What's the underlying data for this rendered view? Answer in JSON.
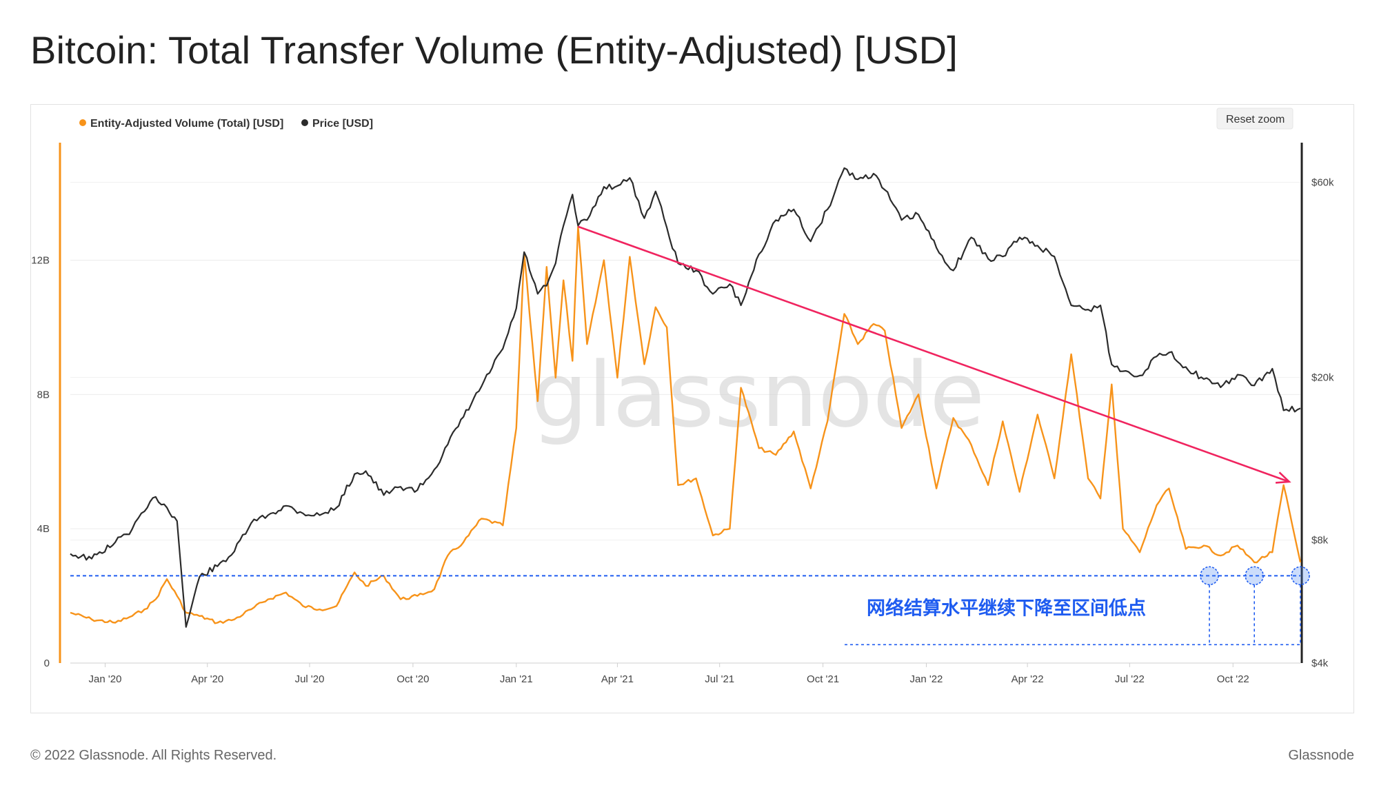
{
  "title": "Bitcoin: Total Transfer Volume (Entity-Adjusted) [USD]",
  "footer": {
    "copyright": "© 2022 Glassnode. All Rights Reserved.",
    "brand": "Glassnode"
  },
  "reset_zoom_label": "Reset zoom",
  "watermark": "glassnode",
  "colors": {
    "volume": "#f7931a",
    "price": "#2b2b2b",
    "trend": "#f0245f",
    "support": "#1f5cf0"
  },
  "chart_data": {
    "type": "line",
    "legend_position": "top-left",
    "grid": true,
    "x_ticks": [
      "Jan '20",
      "Apr '20",
      "Jul '20",
      "Oct '20",
      "Jan '21",
      "Apr '21",
      "Jul '21",
      "Oct '21",
      "Jan '22",
      "Apr '22",
      "Jul '22",
      "Oct '22"
    ],
    "x_range": [
      "2019-12-01",
      "2022-11-30"
    ],
    "y_left": {
      "ticks": [
        "0",
        "4B",
        "8B",
        "12B"
      ],
      "tick_values": [
        0,
        4,
        8,
        12
      ],
      "range": [
        0,
        15.5
      ],
      "unit": "B USD"
    },
    "y_right": {
      "ticks": [
        "$4k",
        "$8k",
        "$20k",
        "$60k"
      ],
      "tick_values": [
        4000,
        8000,
        20000,
        60000
      ],
      "range": [
        4000,
        75000
      ],
      "scale": "log"
    },
    "series": [
      {
        "name": "Entity-Adjusted Volume (Total) [USD]",
        "axis": "left",
        "points": [
          [
            "2019-12-01",
            1.5
          ],
          [
            "2019-12-20",
            1.3
          ],
          [
            "2020-01-10",
            1.2
          ],
          [
            "2020-01-25",
            1.4
          ],
          [
            "2020-02-05",
            1.6
          ],
          [
            "2020-02-15",
            1.9
          ],
          [
            "2020-02-25",
            2.5
          ],
          [
            "2020-03-05",
            2.0
          ],
          [
            "2020-03-13",
            1.5
          ],
          [
            "2020-03-25",
            1.4
          ],
          [
            "2020-04-10",
            1.2
          ],
          [
            "2020-04-25",
            1.3
          ],
          [
            "2020-05-10",
            1.6
          ],
          [
            "2020-05-25",
            1.9
          ],
          [
            "2020-06-10",
            2.1
          ],
          [
            "2020-06-25",
            1.7
          ],
          [
            "2020-07-10",
            1.6
          ],
          [
            "2020-07-25",
            1.7
          ],
          [
            "2020-08-10",
            2.7
          ],
          [
            "2020-08-20",
            2.3
          ],
          [
            "2020-09-05",
            2.6
          ],
          [
            "2020-09-20",
            1.9
          ],
          [
            "2020-10-05",
            2.0
          ],
          [
            "2020-10-20",
            2.2
          ],
          [
            "2020-11-01",
            3.2
          ],
          [
            "2020-11-15",
            3.6
          ],
          [
            "2020-12-01",
            4.3
          ],
          [
            "2020-12-20",
            4.1
          ],
          [
            "2021-01-01",
            7.0
          ],
          [
            "2021-01-08",
            12.2
          ],
          [
            "2021-01-20",
            7.8
          ],
          [
            "2021-01-28",
            11.8
          ],
          [
            "2021-02-05",
            8.5
          ],
          [
            "2021-02-12",
            11.4
          ],
          [
            "2021-02-20",
            9.0
          ],
          [
            "2021-02-25",
            13.0
          ],
          [
            "2021-03-05",
            9.5
          ],
          [
            "2021-03-20",
            12.0
          ],
          [
            "2021-04-01",
            8.5
          ],
          [
            "2021-04-12",
            12.1
          ],
          [
            "2021-04-25",
            8.9
          ],
          [
            "2021-05-05",
            10.6
          ],
          [
            "2021-05-15",
            10.0
          ],
          [
            "2021-05-25",
            5.3
          ],
          [
            "2021-06-10",
            5.5
          ],
          [
            "2021-06-25",
            3.8
          ],
          [
            "2021-07-10",
            4.0
          ],
          [
            "2021-07-20",
            8.2
          ],
          [
            "2021-08-05",
            6.4
          ],
          [
            "2021-08-20",
            6.2
          ],
          [
            "2021-09-05",
            6.9
          ],
          [
            "2021-09-20",
            5.2
          ],
          [
            "2021-10-05",
            7.2
          ],
          [
            "2021-10-20",
            10.4
          ],
          [
            "2021-11-01",
            9.5
          ],
          [
            "2021-11-15",
            10.1
          ],
          [
            "2021-11-25",
            9.9
          ],
          [
            "2021-12-10",
            7.0
          ],
          [
            "2021-12-25",
            8.0
          ],
          [
            "2022-01-10",
            5.2
          ],
          [
            "2022-01-25",
            7.3
          ],
          [
            "2022-02-10",
            6.5
          ],
          [
            "2022-02-25",
            5.3
          ],
          [
            "2022-03-10",
            7.2
          ],
          [
            "2022-03-25",
            5.1
          ],
          [
            "2022-04-10",
            7.4
          ],
          [
            "2022-04-25",
            5.5
          ],
          [
            "2022-05-10",
            9.2
          ],
          [
            "2022-05-25",
            5.5
          ],
          [
            "2022-06-05",
            4.9
          ],
          [
            "2022-06-15",
            8.3
          ],
          [
            "2022-06-25",
            4.0
          ],
          [
            "2022-07-10",
            3.3
          ],
          [
            "2022-07-25",
            4.7
          ],
          [
            "2022-08-05",
            5.2
          ],
          [
            "2022-08-20",
            3.4
          ],
          [
            "2022-09-05",
            3.5
          ],
          [
            "2022-09-20",
            3.2
          ],
          [
            "2022-10-05",
            3.5
          ],
          [
            "2022-10-20",
            3.0
          ],
          [
            "2022-11-05",
            3.3
          ],
          [
            "2022-11-15",
            5.3
          ],
          [
            "2022-11-30",
            3.0
          ]
        ]
      },
      {
        "name": "Price [USD]",
        "axis": "right",
        "points": [
          [
            "2019-12-01",
            7400
          ],
          [
            "2019-12-20",
            7200
          ],
          [
            "2020-01-10",
            7900
          ],
          [
            "2020-01-25",
            8500
          ],
          [
            "2020-02-05",
            9400
          ],
          [
            "2020-02-15",
            10200
          ],
          [
            "2020-02-25",
            9600
          ],
          [
            "2020-03-05",
            8900
          ],
          [
            "2020-03-13",
            4900
          ],
          [
            "2020-03-25",
            6500
          ],
          [
            "2020-04-10",
            6900
          ],
          [
            "2020-04-25",
            7500
          ],
          [
            "2020-05-10",
            8800
          ],
          [
            "2020-05-25",
            9200
          ],
          [
            "2020-06-10",
            9700
          ],
          [
            "2020-06-25",
            9300
          ],
          [
            "2020-07-10",
            9200
          ],
          [
            "2020-07-25",
            9600
          ],
          [
            "2020-08-10",
            11600
          ],
          [
            "2020-08-20",
            11800
          ],
          [
            "2020-09-05",
            10300
          ],
          [
            "2020-09-20",
            10800
          ],
          [
            "2020-10-05",
            10600
          ],
          [
            "2020-10-20",
            11900
          ],
          [
            "2020-11-01",
            13700
          ],
          [
            "2020-11-15",
            16000
          ],
          [
            "2020-12-01",
            19000
          ],
          [
            "2020-12-20",
            23500
          ],
          [
            "2021-01-01",
            29500
          ],
          [
            "2021-01-08",
            40500
          ],
          [
            "2021-01-20",
            32000
          ],
          [
            "2021-01-28",
            33500
          ],
          [
            "2021-02-05",
            38000
          ],
          [
            "2021-02-12",
            47000
          ],
          [
            "2021-02-20",
            56000
          ],
          [
            "2021-02-25",
            47000
          ],
          [
            "2021-03-05",
            48500
          ],
          [
            "2021-03-20",
            58500
          ],
          [
            "2021-04-01",
            58800
          ],
          [
            "2021-04-12",
            61500
          ],
          [
            "2021-04-25",
            49000
          ],
          [
            "2021-05-05",
            57000
          ],
          [
            "2021-05-15",
            46500
          ],
          [
            "2021-05-25",
            38000
          ],
          [
            "2021-06-10",
            36500
          ],
          [
            "2021-06-25",
            32000
          ],
          [
            "2021-07-10",
            33800
          ],
          [
            "2021-07-20",
            30000
          ],
          [
            "2021-08-05",
            40000
          ],
          [
            "2021-08-20",
            48500
          ],
          [
            "2021-09-05",
            51500
          ],
          [
            "2021-09-20",
            43000
          ],
          [
            "2021-10-05",
            51500
          ],
          [
            "2021-10-20",
            65000
          ],
          [
            "2021-11-01",
            61000
          ],
          [
            "2021-11-15",
            63000
          ],
          [
            "2021-11-25",
            57500
          ],
          [
            "2021-12-10",
            48500
          ],
          [
            "2021-12-25",
            50000
          ],
          [
            "2022-01-10",
            41500
          ],
          [
            "2022-01-25",
            36500
          ],
          [
            "2022-02-10",
            44000
          ],
          [
            "2022-02-25",
            39000
          ],
          [
            "2022-03-10",
            39500
          ],
          [
            "2022-03-25",
            44000
          ],
          [
            "2022-04-10",
            42000
          ],
          [
            "2022-04-25",
            39500
          ],
          [
            "2022-05-10",
            30000
          ],
          [
            "2022-05-25",
            29300
          ],
          [
            "2022-06-05",
            30000
          ],
          [
            "2022-06-15",
            21500
          ],
          [
            "2022-06-25",
            20700
          ],
          [
            "2022-07-10",
            20200
          ],
          [
            "2022-07-25",
            22500
          ],
          [
            "2022-08-05",
            23000
          ],
          [
            "2022-08-20",
            21200
          ],
          [
            "2022-09-05",
            19800
          ],
          [
            "2022-09-20",
            18900
          ],
          [
            "2022-10-05",
            20300
          ],
          [
            "2022-10-20",
            19100
          ],
          [
            "2022-11-05",
            21000
          ],
          [
            "2022-11-15",
            16600
          ],
          [
            "2022-11-30",
            16800
          ]
        ]
      }
    ],
    "annotations": {
      "trend_line": {
        "from": [
          "2021-02-25",
          13.0
        ],
        "to": [
          "2022-11-20",
          5.4
        ]
      },
      "support_level": {
        "value": 2.6,
        "axis": "left"
      },
      "support_markers": [
        [
          "2022-09-10",
          2.6
        ],
        [
          "2022-10-20",
          2.6
        ],
        [
          "2022-11-30",
          2.6
        ]
      ],
      "text": "网络结算水平继续下降至区间低点"
    }
  }
}
